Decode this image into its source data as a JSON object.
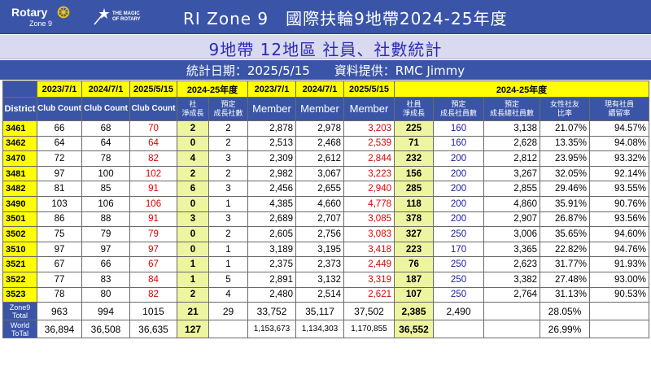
{
  "header": {
    "rotary_word": "Rotary",
    "rotary_zone": "Zone 9",
    "magic_title_1": "THE MAGIC",
    "magic_title_2": "OF ROTARY",
    "magic_sub": "",
    "title": "RI Zone 9　國際扶輪9地帶2024-25年度"
  },
  "subtitle": "9地帶 12地區 社員、社數統計",
  "info": "統計日期：2025/5/15　　資料提供：RMC Jimmy",
  "colors": {
    "header_blue": "#3a55a8",
    "yellow": "#ffff00",
    "lime": "#eef5a0",
    "red": "#e00000",
    "navy": "#1a1aa0"
  },
  "table": {
    "group_headers": [
      "2023/7/1",
      "2024/7/1",
      "2025/5/15",
      "2024-25年度",
      "2023/7/1",
      "2024/7/1",
      "2025/5/15",
      "2024-25年度"
    ],
    "sub_headers": {
      "district": "District",
      "club_count": "Club Count",
      "club_net_1": "社",
      "club_net_2": "淨成長",
      "club_target_1": "預定",
      "club_target_2": "成長社數",
      "member": "Member",
      "member_net_1": "社員",
      "member_net_2": "淨成長",
      "member_target_1": "預定",
      "member_target_2": "成長社員數",
      "member_total_1": "預定",
      "member_total_2": "成長總社員數",
      "female_1": "女性社友",
      "female_2": "比率",
      "retention_1": "現有社員",
      "retention_2": "續留率"
    },
    "rows": [
      {
        "d": "3461",
        "c23": "66",
        "c24": "68",
        "c25": "70",
        "cn": "2",
        "ct": "2",
        "m23": "2,878",
        "m24": "2,978",
        "m25": "3,203",
        "mn": "225",
        "mt": "160",
        "mtt": "3,138",
        "f": "21.07%",
        "r": "94.57%"
      },
      {
        "d": "3462",
        "c23": "64",
        "c24": "64",
        "c25": "64",
        "cn": "0",
        "ct": "2",
        "m23": "2,513",
        "m24": "2,468",
        "m25": "2,539",
        "mn": "71",
        "mt": "160",
        "mtt": "2,628",
        "f": "13.35%",
        "r": "94.08%"
      },
      {
        "d": "3470",
        "c23": "72",
        "c24": "78",
        "c25": "82",
        "cn": "4",
        "ct": "3",
        "m23": "2,309",
        "m24": "2,612",
        "m25": "2,844",
        "mn": "232",
        "mt": "200",
        "mtt": "2,812",
        "f": "23.95%",
        "r": "93.32%"
      },
      {
        "d": "3481",
        "c23": "97",
        "c24": "100",
        "c25": "102",
        "cn": "2",
        "ct": "2",
        "m23": "2,982",
        "m24": "3,067",
        "m25": "3,223",
        "mn": "156",
        "mt": "200",
        "mtt": "3,267",
        "f": "32.05%",
        "r": "92.14%"
      },
      {
        "d": "3482",
        "c23": "81",
        "c24": "85",
        "c25": "91",
        "cn": "6",
        "ct": "3",
        "m23": "2,456",
        "m24": "2,655",
        "m25": "2,940",
        "mn": "285",
        "mt": "200",
        "mtt": "2,855",
        "f": "29.46%",
        "r": "93.55%"
      },
      {
        "d": "3490",
        "c23": "103",
        "c24": "106",
        "c25": "106",
        "cn": "0",
        "ct": "1",
        "m23": "4,385",
        "m24": "4,660",
        "m25": "4,778",
        "mn": "118",
        "mt": "200",
        "mtt": "4,860",
        "f": "35.91%",
        "r": "90.76%"
      },
      {
        "d": "3501",
        "c23": "86",
        "c24": "88",
        "c25": "91",
        "cn": "3",
        "ct": "3",
        "m23": "2,689",
        "m24": "2,707",
        "m25": "3,085",
        "mn": "378",
        "mt": "200",
        "mtt": "2,907",
        "f": "26.87%",
        "r": "93.56%"
      },
      {
        "d": "3502",
        "c23": "75",
        "c24": "79",
        "c25": "79",
        "cn": "0",
        "ct": "2",
        "m23": "2,605",
        "m24": "2,756",
        "m25": "3,083",
        "mn": "327",
        "mt": "250",
        "mtt": "3,006",
        "f": "35.65%",
        "r": "94.60%"
      },
      {
        "d": "3510",
        "c23": "97",
        "c24": "97",
        "c25": "97",
        "cn": "0",
        "ct": "1",
        "m23": "3,189",
        "m24": "3,195",
        "m25": "3,418",
        "mn": "223",
        "mt": "170",
        "mtt": "3,365",
        "f": "22.82%",
        "r": "94.76%"
      },
      {
        "d": "3521",
        "c23": "67",
        "c24": "66",
        "c25": "67",
        "cn": "1",
        "ct": "1",
        "m23": "2,375",
        "m24": "2,373",
        "m25": "2,449",
        "mn": "76",
        "mt": "250",
        "mtt": "2,623",
        "f": "31.77%",
        "r": "91.93%"
      },
      {
        "d": "3522",
        "c23": "77",
        "c24": "83",
        "c25": "84",
        "cn": "1",
        "ct": "5",
        "m23": "2,891",
        "m24": "3,132",
        "m25": "3,319",
        "mn": "187",
        "mt": "250",
        "mtt": "3,382",
        "f": "27.48%",
        "r": "93.00%"
      },
      {
        "d": "3523",
        "c23": "78",
        "c24": "80",
        "c25": "82",
        "cn": "2",
        "ct": "4",
        "m23": "2,480",
        "m24": "2,514",
        "m25": "2,621",
        "mn": "107",
        "mt": "250",
        "mtt": "2,764",
        "f": "31.13%",
        "r": "90.53%"
      }
    ],
    "totals": [
      {
        "d1": "Zone9",
        "d2": "Total",
        "c23": "963",
        "c24": "994",
        "c25": "1015",
        "cn": "21",
        "ct": "29",
        "m23": "33,752",
        "m24": "35,117",
        "m25": "37,502",
        "mn": "2,385",
        "mt": "2,490",
        "mtt": "",
        "f": "28.05%",
        "r": ""
      },
      {
        "d1": "World",
        "d2": "ToTal",
        "c23": "36,894",
        "c24": "36,508",
        "c25": "36,635",
        "cn": "127",
        "ct": "",
        "m23": "1,153,673",
        "m24": "1,134,303",
        "m25": "1,170,855",
        "mn": "36,552",
        "mt": "",
        "mtt": "",
        "f": "26.99%",
        "r": ""
      }
    ]
  }
}
